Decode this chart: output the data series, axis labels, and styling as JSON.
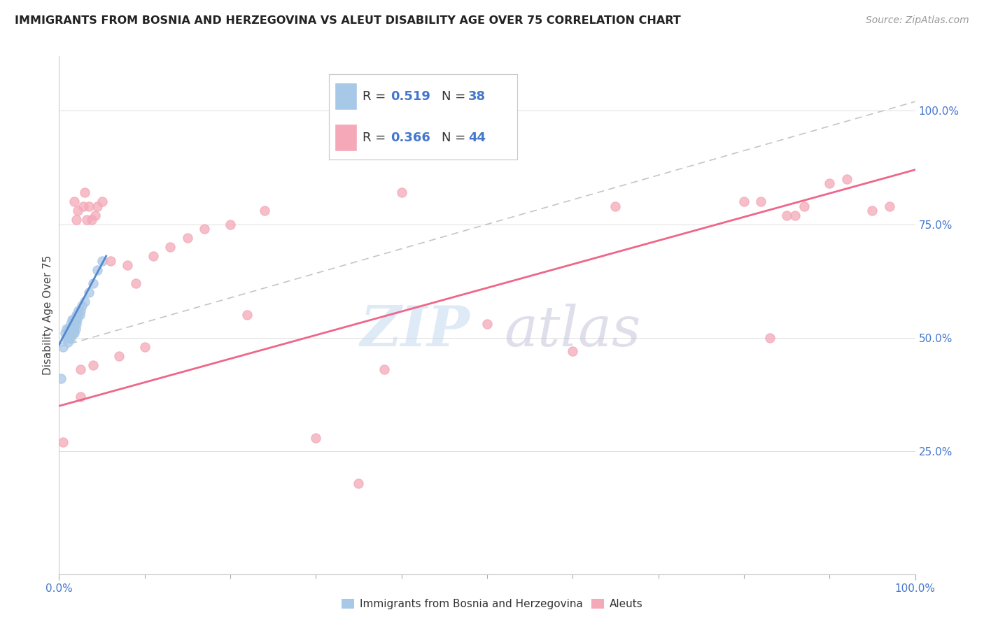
{
  "title": "IMMIGRANTS FROM BOSNIA AND HERZEGOVINA VS ALEUT DISABILITY AGE OVER 75 CORRELATION CHART",
  "source": "Source: ZipAtlas.com",
  "ylabel": "Disability Age Over 75",
  "xlim": [
    0.0,
    1.0
  ],
  "ylim": [
    -0.02,
    1.12
  ],
  "y_ticks": [
    0.25,
    0.5,
    0.75,
    1.0
  ],
  "y_tick_labels": [
    "25.0%",
    "50.0%",
    "75.0%",
    "100.0%"
  ],
  "x_tick_labels": [
    "0.0%",
    "100.0%"
  ],
  "legend_r1": "0.519",
  "legend_n1": "38",
  "legend_r2": "0.366",
  "legend_n2": "44",
  "color_blue": "#A8C8E8",
  "color_pink": "#F4A8B8",
  "color_blue_line": "#5588CC",
  "color_pink_line": "#EE6688",
  "color_dashed": "#BBBBBB",
  "watermark_zip": "ZIP",
  "watermark_atlas": "atlas",
  "label1": "Immigrants from Bosnia and Herzegovina",
  "label2": "Aleuts",
  "bosnia_x": [
    0.002,
    0.005,
    0.007,
    0.008,
    0.009,
    0.01,
    0.01,
    0.011,
    0.011,
    0.012,
    0.012,
    0.013,
    0.013,
    0.014,
    0.014,
    0.015,
    0.015,
    0.016,
    0.016,
    0.017,
    0.017,
    0.018,
    0.018,
    0.019,
    0.019,
    0.02,
    0.02,
    0.021,
    0.022,
    0.023,
    0.024,
    0.025,
    0.027,
    0.03,
    0.035,
    0.04,
    0.045,
    0.05
  ],
  "bosnia_y": [
    0.41,
    0.48,
    0.51,
    0.5,
    0.52,
    0.5,
    0.49,
    0.51,
    0.52,
    0.5,
    0.51,
    0.52,
    0.51,
    0.53,
    0.5,
    0.52,
    0.54,
    0.51,
    0.53,
    0.52,
    0.54,
    0.53,
    0.51,
    0.54,
    0.52,
    0.53,
    0.55,
    0.54,
    0.55,
    0.56,
    0.55,
    0.56,
    0.57,
    0.58,
    0.6,
    0.62,
    0.65,
    0.67
  ],
  "aleut_x": [
    0.005,
    0.018,
    0.02,
    0.022,
    0.025,
    0.025,
    0.028,
    0.03,
    0.032,
    0.035,
    0.038,
    0.04,
    0.042,
    0.045,
    0.05,
    0.06,
    0.07,
    0.08,
    0.09,
    0.1,
    0.11,
    0.13,
    0.15,
    0.17,
    0.2,
    0.22,
    0.24,
    0.3,
    0.35,
    0.38,
    0.4,
    0.5,
    0.6,
    0.65,
    0.8,
    0.82,
    0.83,
    0.85,
    0.86,
    0.87,
    0.9,
    0.92,
    0.95,
    0.97
  ],
  "aleut_y": [
    0.27,
    0.8,
    0.76,
    0.78,
    0.37,
    0.43,
    0.79,
    0.82,
    0.76,
    0.79,
    0.76,
    0.44,
    0.77,
    0.79,
    0.8,
    0.67,
    0.46,
    0.66,
    0.62,
    0.48,
    0.68,
    0.7,
    0.72,
    0.74,
    0.75,
    0.55,
    0.78,
    0.28,
    0.18,
    0.43,
    0.82,
    0.53,
    0.47,
    0.79,
    0.8,
    0.8,
    0.5,
    0.77,
    0.77,
    0.79,
    0.84,
    0.85,
    0.78,
    0.79
  ],
  "blue_line_x": [
    0.0,
    0.055
  ],
  "blue_line_y": [
    0.485,
    0.68
  ],
  "pink_line_x": [
    0.0,
    1.0
  ],
  "pink_line_y": [
    0.35,
    0.87
  ],
  "dash_line_x": [
    0.0,
    1.0
  ],
  "dash_line_y": [
    0.48,
    1.02
  ]
}
